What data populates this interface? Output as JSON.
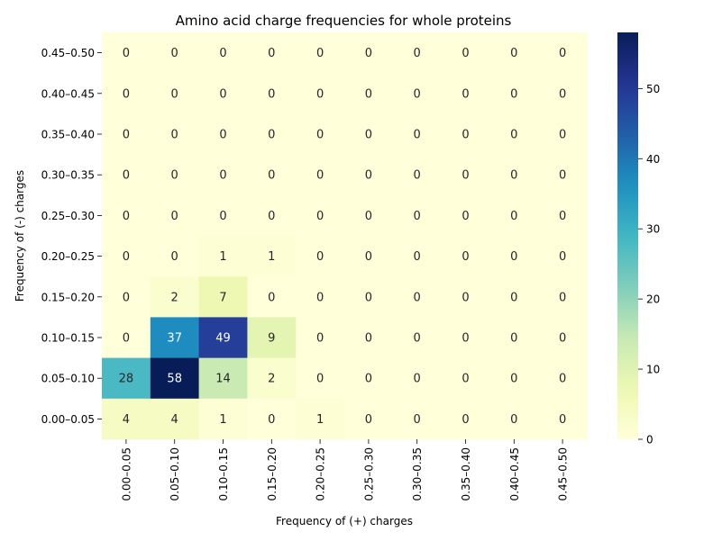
{
  "chart_data": {
    "type": "heatmap",
    "title": "Amino acid charge frequencies for whole proteins",
    "xlabel": "Frequency of (+) charges",
    "ylabel": "Frequency of (-) charges",
    "x_categories": [
      "0.00–0.05",
      "0.05–0.10",
      "0.10–0.15",
      "0.15–0.20",
      "0.20–0.25",
      "0.25–0.30",
      "0.30–0.35",
      "0.35–0.40",
      "0.40–0.45",
      "0.45–0.50"
    ],
    "y_categories": [
      "0.45–0.50",
      "0.40–0.45",
      "0.35–0.40",
      "0.30–0.35",
      "0.25–0.30",
      "0.20–0.25",
      "0.15–0.20",
      "0.10–0.15",
      "0.05–0.10",
      "0.00–0.05"
    ],
    "values": [
      [
        0,
        0,
        0,
        0,
        0,
        0,
        0,
        0,
        0,
        0
      ],
      [
        0,
        0,
        0,
        0,
        0,
        0,
        0,
        0,
        0,
        0
      ],
      [
        0,
        0,
        0,
        0,
        0,
        0,
        0,
        0,
        0,
        0
      ],
      [
        0,
        0,
        0,
        0,
        0,
        0,
        0,
        0,
        0,
        0
      ],
      [
        0,
        0,
        0,
        0,
        0,
        0,
        0,
        0,
        0,
        0
      ],
      [
        0,
        0,
        1,
        1,
        0,
        0,
        0,
        0,
        0,
        0
      ],
      [
        0,
        2,
        7,
        0,
        0,
        0,
        0,
        0,
        0,
        0
      ],
      [
        0,
        37,
        49,
        9,
        0,
        0,
        0,
        0,
        0,
        0
      ],
      [
        28,
        58,
        14,
        2,
        0,
        0,
        0,
        0,
        0,
        0
      ],
      [
        4,
        4,
        1,
        0,
        1,
        0,
        0,
        0,
        0,
        0
      ]
    ],
    "colormap": "YlGnBu",
    "colorbar": {
      "vmin": 0,
      "vmax": 58,
      "ticks": [
        0,
        10,
        20,
        30,
        40,
        50
      ]
    },
    "annotations": true
  }
}
